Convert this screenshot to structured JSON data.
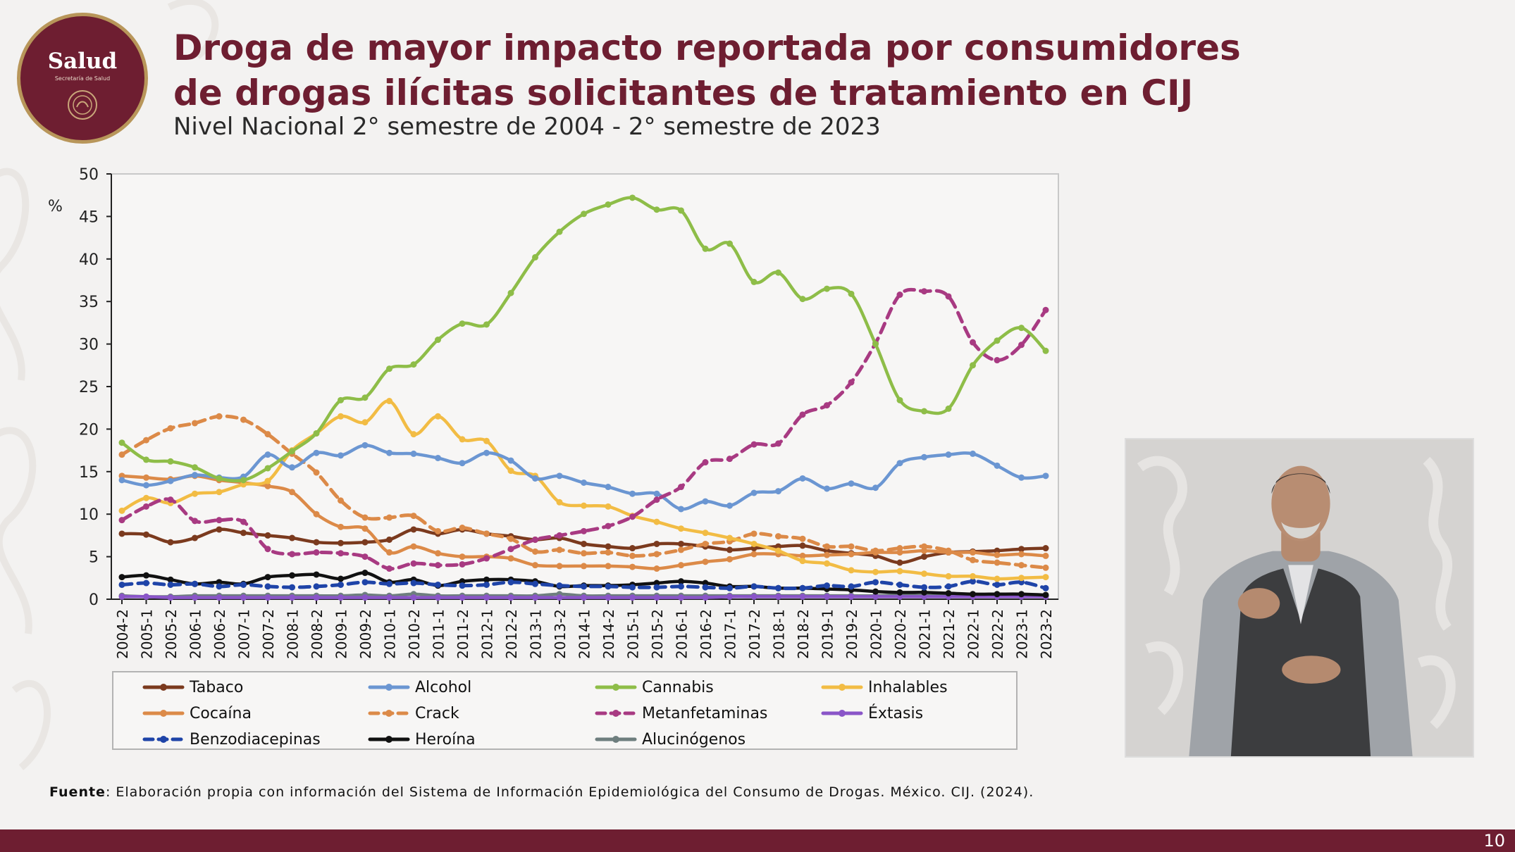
{
  "logo": {
    "title": "Salud",
    "subtitle": "Secretaría de Salud"
  },
  "title": "Droga de mayor impacto reportada por consumidores de drogas ilícitas solicitantes de tratamiento en CIJ",
  "subtitle": "Nivel Nacional 2° semestre de 2004 - 2° semestre de 2023",
  "footnote": {
    "label": "Fuente",
    "text": ": Elaboración propia con información del Sistema de Información Epidemiológica del Consumo de Drogas. México. CIJ. (2024)."
  },
  "page_number": "10",
  "chart_data": {
    "type": "line",
    "title": "",
    "xlabel": "",
    "ylabel": "%",
    "ylim": [
      0,
      50
    ],
    "yticks": [
      0,
      5,
      10,
      15,
      20,
      25,
      30,
      35,
      40,
      45,
      50
    ],
    "grid": "horizontal dashed",
    "legend_position": "bottom",
    "x": [
      "2004-2",
      "2005-1",
      "2005-2",
      "2006-1",
      "2006-2",
      "2007-1",
      "2007-2",
      "2008-1",
      "2008-2",
      "2009-1",
      "2009-2",
      "2010-1",
      "2010-2",
      "2011-1",
      "2011-2",
      "2012-1",
      "2012-2",
      "2013-1",
      "2013-2",
      "2014-1",
      "2014-2",
      "2015-1",
      "2015-2",
      "2016-1",
      "2016-2",
      "2017-1",
      "2017-2",
      "2018-1",
      "2018-2",
      "2019-1",
      "2019-2",
      "2020-1",
      "2020-2",
      "2021-1",
      "2021-2",
      "2022-1",
      "2022-2",
      "2023-1",
      "2023-2"
    ],
    "series": [
      {
        "name": "Tabaco",
        "color": "#7b3a1e",
        "dash": "solid",
        "values": [
          7.7,
          7.6,
          6.7,
          7.2,
          8.2,
          7.8,
          7.5,
          7.2,
          6.7,
          6.6,
          6.7,
          7.0,
          8.2,
          7.7,
          8.2,
          7.7,
          7.4,
          7.0,
          7.2,
          6.5,
          6.2,
          6.0,
          6.5,
          6.5,
          6.2,
          5.8,
          6.0,
          6.2,
          6.3,
          5.7,
          5.4,
          5.1,
          4.3,
          5.0,
          5.5,
          5.6,
          5.7,
          5.9,
          6.0
        ]
      },
      {
        "name": "Alcohol",
        "color": "#6b96d2",
        "dash": "solid",
        "values": [
          14.0,
          13.4,
          13.9,
          14.6,
          14.3,
          14.4,
          17.0,
          15.5,
          17.2,
          16.9,
          18.1,
          17.2,
          17.1,
          16.6,
          16.0,
          17.2,
          16.3,
          14.2,
          14.5,
          13.7,
          13.2,
          12.4,
          12.4,
          10.6,
          11.5,
          11.0,
          12.5,
          12.7,
          14.2,
          13.0,
          13.6,
          13.1,
          16.0,
          16.7,
          17.0,
          17.1,
          15.7,
          14.3,
          14.5
        ]
      },
      {
        "name": "Cannabis",
        "color": "#8ebd48",
        "dash": "solid",
        "values": [
          18.4,
          16.4,
          16.2,
          15.5,
          14.2,
          14.0,
          15.4,
          17.4,
          19.5,
          23.4,
          23.7,
          27.1,
          27.6,
          30.5,
          32.4,
          32.3,
          36.0,
          40.2,
          43.2,
          45.3,
          46.4,
          47.2,
          45.8,
          45.7,
          41.2,
          41.8,
          37.3,
          38.4,
          35.3,
          36.5,
          35.9,
          30.0,
          23.4,
          22.1,
          22.4,
          27.5,
          30.4,
          31.9,
          29.2
        ]
      },
      {
        "name": "Inhalables",
        "color": "#f2bc44",
        "dash": "solid",
        "values": [
          10.4,
          11.9,
          11.3,
          12.4,
          12.6,
          13.5,
          13.9,
          17.5,
          19.5,
          21.5,
          20.8,
          23.3,
          19.4,
          21.5,
          18.8,
          18.6,
          15.1,
          14.5,
          11.4,
          11.0,
          10.9,
          9.8,
          9.1,
          8.3,
          7.8,
          7.2,
          6.5,
          5.7,
          4.5,
          4.2,
          3.4,
          3.2,
          3.3,
          3.0,
          2.7,
          2.7,
          2.4,
          2.5,
          2.6
        ]
      },
      {
        "name": "Cocaína",
        "color": "#dc8a48",
        "dash": "solid",
        "values": [
          14.5,
          14.3,
          14.1,
          14.5,
          14.0,
          13.7,
          13.3,
          12.6,
          10.0,
          8.5,
          8.3,
          5.5,
          6.2,
          5.4,
          5.0,
          5.0,
          4.8,
          4.0,
          3.9,
          3.9,
          3.9,
          3.8,
          3.6,
          4.0,
          4.4,
          4.7,
          5.3,
          5.3,
          5.1,
          5.2,
          5.3,
          5.5,
          5.5,
          5.7,
          5.5,
          5.5,
          5.2,
          5.3,
          5.1
        ]
      },
      {
        "name": "Crack",
        "color": "#dc8a48",
        "dash": "dashed",
        "values": [
          17.0,
          18.7,
          20.1,
          20.7,
          21.5,
          21.1,
          19.4,
          17.1,
          14.9,
          11.6,
          9.6,
          9.6,
          9.8,
          8.0,
          8.4,
          7.7,
          7.1,
          5.6,
          5.8,
          5.4,
          5.5,
          5.1,
          5.3,
          5.8,
          6.5,
          6.8,
          7.7,
          7.4,
          7.1,
          6.2,
          6.2,
          5.7,
          6.0,
          6.2,
          5.7,
          4.6,
          4.3,
          4.0,
          3.7
        ]
      },
      {
        "name": "Metanfetaminas",
        "color": "#a83a82",
        "dash": "dashed",
        "values": [
          9.3,
          10.9,
          11.7,
          9.2,
          9.3,
          9.1,
          5.9,
          5.3,
          5.5,
          5.4,
          5.0,
          3.6,
          4.2,
          4.0,
          4.1,
          4.8,
          5.9,
          7.0,
          7.5,
          8.0,
          8.6,
          9.7,
          11.7,
          13.2,
          16.1,
          16.5,
          18.2,
          18.3,
          21.7,
          22.8,
          25.5,
          30.1,
          35.8,
          36.2,
          35.6,
          30.2,
          28.1,
          29.9,
          34.0
        ]
      },
      {
        "name": "Éxtasis",
        "color": "#8a55c8",
        "dash": "solid",
        "values": [
          0.3,
          0.3,
          0.2,
          0.2,
          0.2,
          0.2,
          0.2,
          0.2,
          0.2,
          0.2,
          0.2,
          0.2,
          0.2,
          0.2,
          0.2,
          0.2,
          0.2,
          0.2,
          0.2,
          0.2,
          0.2,
          0.2,
          0.2,
          0.2,
          0.2,
          0.3,
          0.3,
          0.3,
          0.3,
          0.3,
          0.3,
          0.3,
          0.3,
          0.3,
          0.3,
          0.3,
          0.3,
          0.3,
          0.3
        ]
      },
      {
        "name": "Benzodiacepinas",
        "color": "#1f44a8",
        "dash": "dashed",
        "values": [
          1.7,
          1.9,
          1.7,
          1.8,
          1.5,
          1.7,
          1.5,
          1.4,
          1.5,
          1.7,
          2.0,
          1.8,
          1.9,
          1.7,
          1.6,
          1.7,
          2.0,
          1.8,
          1.6,
          1.5,
          1.5,
          1.4,
          1.4,
          1.5,
          1.4,
          1.3,
          1.5,
          1.3,
          1.3,
          1.6,
          1.5,
          2.0,
          1.7,
          1.4,
          1.5,
          2.1,
          1.7,
          2.0,
          1.3
        ]
      },
      {
        "name": "Heroína",
        "color": "#111111",
        "dash": "solid",
        "values": [
          2.6,
          2.8,
          2.3,
          1.8,
          2.0,
          1.8,
          2.6,
          2.8,
          2.9,
          2.4,
          3.1,
          2.0,
          2.3,
          1.6,
          2.1,
          2.3,
          2.3,
          2.1,
          1.5,
          1.6,
          1.6,
          1.7,
          1.9,
          2.1,
          1.9,
          1.5,
          1.5,
          1.3,
          1.3,
          1.2,
          1.1,
          0.9,
          0.8,
          0.8,
          0.7,
          0.6,
          0.6,
          0.6,
          0.5
        ]
      },
      {
        "name": "Alucinógenos",
        "color": "#6e7e7e",
        "dash": "solid",
        "values": [
          0.4,
          0.3,
          0.3,
          0.4,
          0.4,
          0.4,
          0.4,
          0.4,
          0.4,
          0.4,
          0.5,
          0.4,
          0.6,
          0.4,
          0.4,
          0.4,
          0.4,
          0.4,
          0.6,
          0.4,
          0.4,
          0.4,
          0.4,
          0.4,
          0.4,
          0.4,
          0.4,
          0.4,
          0.4,
          0.4,
          0.4,
          0.4,
          0.5,
          0.4,
          0.4,
          0.4,
          0.4,
          0.4,
          0.4
        ]
      }
    ]
  }
}
